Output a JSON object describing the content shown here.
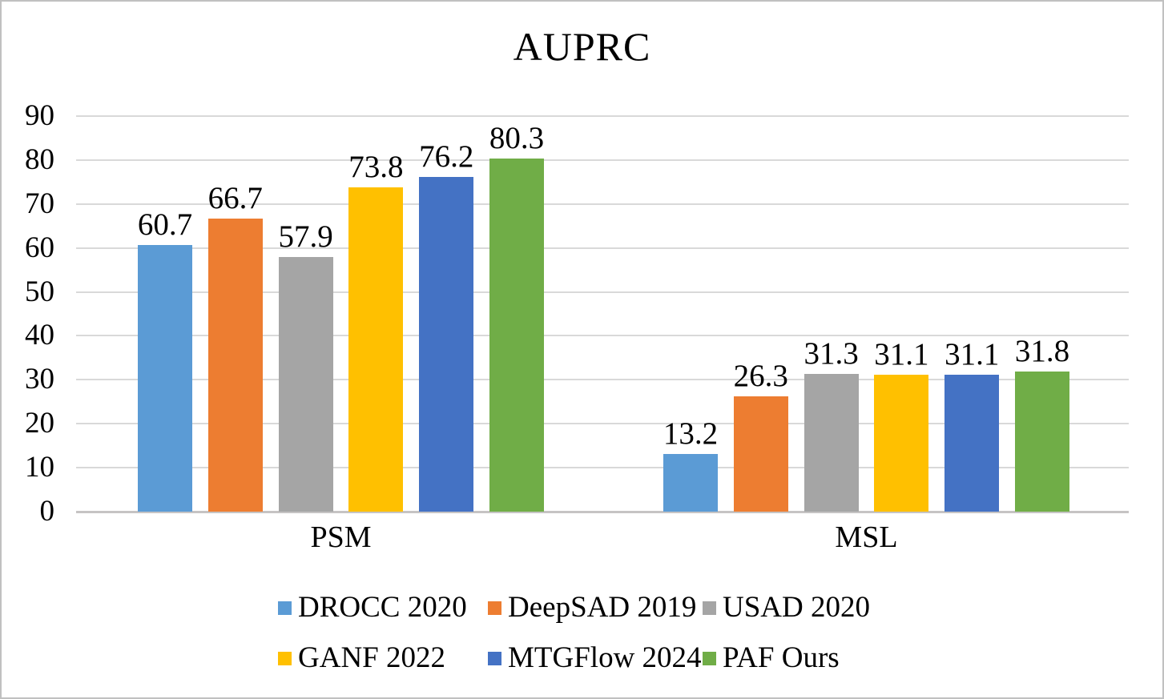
{
  "figure": {
    "background": "#FFFFFF",
    "border_color": "#C0C0C0"
  },
  "chart_data": {
    "type": "bar",
    "title": "AUPRC",
    "categories": [
      "PSM",
      "MSL"
    ],
    "series": [
      {
        "name": "DROCC 2020",
        "color": "#5B9BD5",
        "values": [
          60.7,
          13.2
        ]
      },
      {
        "name": "DeepSAD 2019",
        "color": "#ED7D31",
        "values": [
          66.7,
          26.3
        ]
      },
      {
        "name": "USAD 2020",
        "color": "#A5A5A5",
        "values": [
          57.9,
          31.3
        ]
      },
      {
        "name": "GANF 2022",
        "color": "#FFC000",
        "values": [
          73.8,
          31.1
        ]
      },
      {
        "name": "MTGFlow 2024",
        "color": "#4472C4",
        "values": [
          76.2,
          31.1
        ]
      },
      {
        "name": "PAF Ours",
        "color": "#70AD47",
        "values": [
          80.3,
          31.8
        ]
      }
    ],
    "y_ticks": [
      0,
      10,
      20,
      30,
      40,
      50,
      60,
      70,
      80,
      90
    ],
    "ylim": [
      0,
      90
    ],
    "grid": true,
    "data_labels": true,
    "legend_position": "bottom",
    "gridline_color": "#D9D9D9",
    "axis_line_color": "#C6C4C4",
    "label_color": "#000000"
  }
}
